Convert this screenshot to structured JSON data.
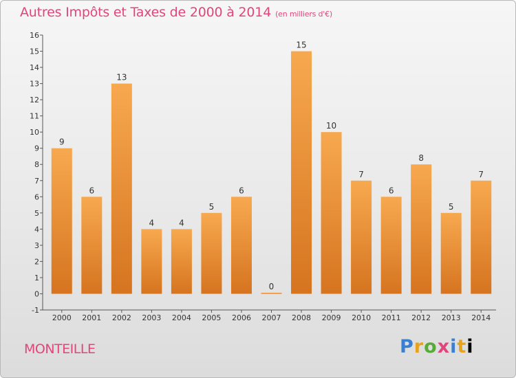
{
  "title": "Autres Impôts et Taxes de 2000 à 2014",
  "title_unit": "(en milliers d'€)",
  "location": "MONTEILLE",
  "logo_letters": [
    "P",
    "r",
    "o",
    "x",
    "i",
    "t",
    "i"
  ],
  "colors": {
    "title": "#e0457b",
    "bar_light": "#f7a94f",
    "bar_dark": "#d67420"
  },
  "chart_data": {
    "type": "bar",
    "categories": [
      "2000",
      "2001",
      "2002",
      "2003",
      "2004",
      "2005",
      "2006",
      "2007",
      "2008",
      "2009",
      "2010",
      "2011",
      "2012",
      "2013",
      "2014"
    ],
    "values": [
      9,
      6,
      13,
      4,
      4,
      5,
      6,
      0,
      15,
      10,
      7,
      6,
      8,
      5,
      7
    ],
    "ylim": [
      -1,
      16
    ],
    "yticks": [
      -1,
      0,
      1,
      2,
      3,
      4,
      5,
      6,
      7,
      8,
      9,
      10,
      11,
      12,
      13,
      14,
      15,
      16
    ],
    "grid": false,
    "xlabel": "",
    "ylabel": ""
  }
}
